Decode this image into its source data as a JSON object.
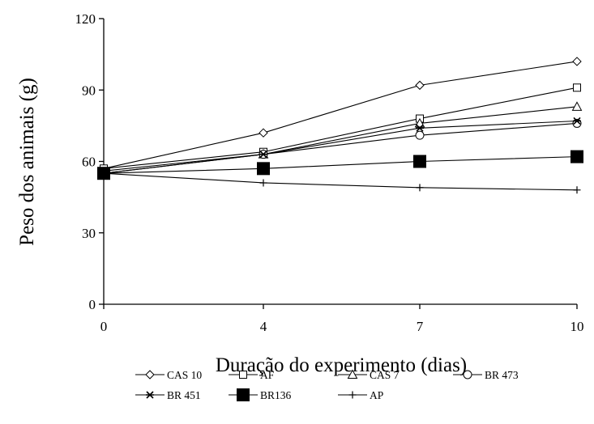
{
  "chart_data": {
    "type": "line",
    "title": "",
    "xlabel": "Duração do experimento (dias)",
    "ylabel": "Peso dos animais (g)",
    "categories": [
      "0",
      "4",
      "7",
      "10"
    ],
    "x": [
      0,
      4,
      7,
      10
    ],
    "y_ticks": [
      "0",
      "30",
      "60",
      "90",
      "120"
    ],
    "ylim": [
      0,
      120
    ],
    "grid": false,
    "legend_position": "bottom",
    "series": [
      {
        "name": "CAS 10",
        "marker": "diamond-open",
        "values": [
          57,
          72,
          92,
          102
        ]
      },
      {
        "name": "AF",
        "marker": "square-open",
        "values": [
          57,
          64,
          78,
          91
        ]
      },
      {
        "name": "CAS 7",
        "marker": "triangle-open",
        "values": [
          55,
          63,
          76,
          83
        ]
      },
      {
        "name": "BR 473",
        "marker": "circle-open",
        "values": [
          55,
          63,
          71,
          76
        ]
      },
      {
        "name": "BR 451",
        "marker": "star",
        "values": [
          56,
          63,
          74,
          77
        ]
      },
      {
        "name": "BR136",
        "marker": "square-filled",
        "values": [
          55,
          57,
          60,
          62
        ]
      },
      {
        "name": "AP",
        "marker": "plus",
        "values": [
          55,
          51,
          49,
          48
        ]
      }
    ]
  }
}
